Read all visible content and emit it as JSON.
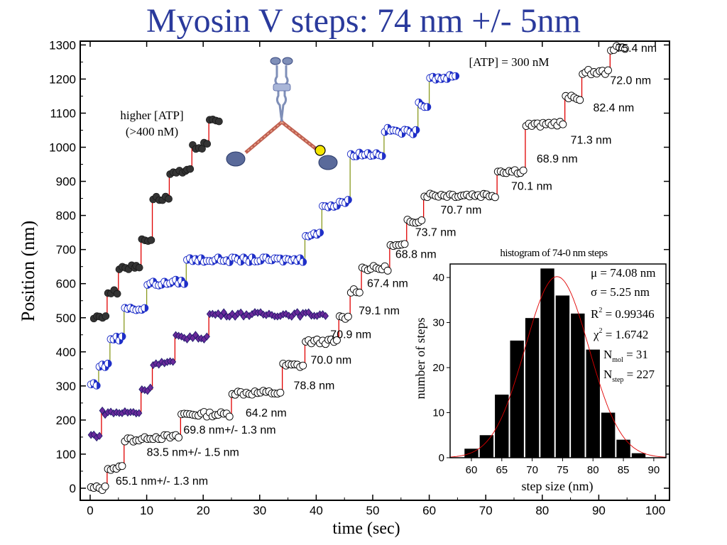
{
  "slide_title": "Myosin V steps: 74 nm +/- 5nm",
  "colors": {
    "title": "#2a3a9c",
    "step_fit": "#e00000",
    "blue": "#1f2fc8",
    "purple": "#6a2a9a",
    "dark": "#333333",
    "green_fit": "#8a9a20"
  },
  "chart_data": [
    {
      "type": "scatter",
      "xlabel": "time (sec)",
      "ylabel": "Position (nm)",
      "xlim": [
        -2,
        102
      ],
      "ylim": [
        -20,
        1310
      ],
      "xticks": [
        0,
        10,
        20,
        30,
        40,
        50,
        60,
        70,
        80,
        90,
        100
      ],
      "yticks": [
        0,
        100,
        200,
        300,
        400,
        500,
        600,
        700,
        800,
        900,
        1000,
        1100,
        1200,
        1300
      ],
      "annotations": {
        "atp_high": "higher [ATP]",
        "atp_high_conc": "(>400 nM)",
        "atp_300": "[ATP] = 300 nM"
      },
      "step_labels": [
        {
          "text": "75.4 nm",
          "x": 93.0,
          "y": 1280
        },
        {
          "text": "72.0 nm",
          "x": 92.0,
          "y": 1185
        },
        {
          "text": "82.4 nm",
          "x": 89.0,
          "y": 1105
        },
        {
          "text": "71.3 nm",
          "x": 85.0,
          "y": 1010
        },
        {
          "text": "68.9 nm",
          "x": 79.0,
          "y": 955
        },
        {
          "text": "70.1 nm",
          "x": 74.5,
          "y": 875
        },
        {
          "text": "70.7 nm",
          "x": 62.0,
          "y": 805
        },
        {
          "text": "73.7 nm",
          "x": 57.5,
          "y": 740
        },
        {
          "text": "68.8 nm",
          "x": 54.0,
          "y": 675
        },
        {
          "text": "67.4 nm",
          "x": 49.0,
          "y": 590
        },
        {
          "text": "79.1 nm",
          "x": 47.5,
          "y": 510
        },
        {
          "text": "70.9 nm",
          "x": 42.5,
          "y": 440
        },
        {
          "text": "70.0 nm",
          "x": 39.0,
          "y": 365
        },
        {
          "text": "78.8 nm",
          "x": 36.0,
          "y": 290
        },
        {
          "text": "64.2 nm",
          "x": 27.5,
          "y": 210
        },
        {
          "text": "69.8 nm+/- 1.3 nm",
          "x": 16.5,
          "y": 160
        },
        {
          "text": "83.5 nm+/- 1.5 nm",
          "x": 10.0,
          "y": 95
        },
        {
          "text": "65.1 nm+/- 1.3 nm",
          "x": 4.5,
          "y": 10
        }
      ],
      "series": [
        {
          "marker": "open-circle",
          "steps": [
            [
              0,
              3,
              0
            ],
            [
              3,
              6,
              60
            ],
            [
              6,
              10,
              143
            ],
            [
              10,
              16,
              150
            ],
            [
              16,
              25,
              217
            ],
            [
              25,
              34,
              280
            ],
            [
              34,
              38,
              360
            ],
            [
              38,
              44,
              430
            ],
            [
              44,
              46,
              500
            ],
            [
              46,
              48,
              580
            ],
            [
              48,
              53,
              645
            ],
            [
              53,
              56,
              710
            ],
            [
              56,
              59,
              785
            ],
            [
              59,
              66,
              860
            ],
            [
              66,
              72,
              860
            ],
            [
              72,
              74,
              930
            ],
            [
              74,
              77,
              930
            ],
            [
              77,
              81,
              1065
            ],
            [
              81,
              84,
              1070
            ],
            [
              84,
              87,
              1145
            ],
            [
              87,
              88,
              1215
            ],
            [
              88,
              92,
              1220
            ],
            [
              92,
              95,
              1290
            ]
          ]
        },
        {
          "marker": "purple-diamond",
          "steps": [
            [
              0,
              2,
              155
            ],
            [
              2,
              9,
              222
            ],
            [
              9,
              11,
              290
            ],
            [
              11,
              15,
              368
            ],
            [
              15,
              21,
              443
            ],
            [
              21,
              42,
              510
            ]
          ]
        },
        {
          "marker": "blue-half-circle",
          "steps": [
            [
              0,
              1.5,
              305
            ],
            [
              1.5,
              3.5,
              360
            ],
            [
              3.5,
              6,
              440
            ],
            [
              6,
              8,
              530
            ],
            [
              8,
              10,
              525
            ],
            [
              10,
              14,
              600
            ],
            [
              14,
              17,
              605
            ],
            [
              17,
              38,
              670
            ],
            [
              38,
              41,
              745
            ],
            [
              41,
              44,
              830
            ],
            [
              44,
              46,
              840
            ],
            [
              46,
              52,
              980
            ],
            [
              52,
              54,
              1050
            ],
            [
              54,
              58,
              1045
            ],
            [
              58,
              60,
              1125
            ],
            [
              60,
              65,
              1205
            ]
          ]
        },
        {
          "marker": "dark-filled-circle",
          "steps": [
            [
              0.5,
              1.5,
              500
            ],
            [
              1.5,
              3,
              505
            ],
            [
              3,
              5,
              575
            ],
            [
              5,
              8,
              648
            ],
            [
              8,
              9,
              650
            ],
            [
              9,
              11,
              730
            ],
            [
              11,
              14,
              850
            ],
            [
              14,
              17,
              925
            ],
            [
              17,
              18,
              930
            ],
            [
              18,
              20,
              1000
            ],
            [
              20,
              21,
              1015
            ],
            [
              21,
              23,
              1075
            ]
          ]
        }
      ]
    },
    {
      "type": "bar",
      "title": "histogram of 74-0 nm steps",
      "xlabel": "step size (nm)",
      "ylabel": "number of steps",
      "xlim": [
        56.5,
        92
      ],
      "ylim": [
        0,
        43
      ],
      "xticks": [
        60,
        65,
        70,
        75,
        80,
        85,
        90
      ],
      "yticks": [
        0,
        10,
        20,
        30,
        40
      ],
      "bin_width": 2.5,
      "bins": [
        {
          "center": 60,
          "value": 2
        },
        {
          "center": 62.5,
          "value": 5
        },
        {
          "center": 65,
          "value": 14
        },
        {
          "center": 67.5,
          "value": 26
        },
        {
          "center": 70,
          "value": 31
        },
        {
          "center": 72.5,
          "value": 42
        },
        {
          "center": 75,
          "value": 36
        },
        {
          "center": 77.5,
          "value": 32
        },
        {
          "center": 80,
          "value": 24
        },
        {
          "center": 82.5,
          "value": 10
        },
        {
          "center": 85,
          "value": 4
        },
        {
          "center": 87.5,
          "value": 1
        }
      ],
      "gaussian_fit": {
        "mu": 74.08,
        "sigma": 5.25,
        "peak": 40.2
      },
      "stats": {
        "mu": "μ = 74.08 nm",
        "sigma": "σ = 5.25 nm",
        "r2_main": "R",
        "r2_sup": "2",
        "r2_val": " = 0.99346",
        "chi_main": "χ",
        "chi_sup": "2",
        "chi_val": " = 1.6742",
        "nmol_main": "N",
        "nmol_sub": "mol",
        "nmol_val": " = 31",
        "nstep_main": "N",
        "nstep_sub": "step",
        "nstep_val": " = 227"
      }
    }
  ]
}
